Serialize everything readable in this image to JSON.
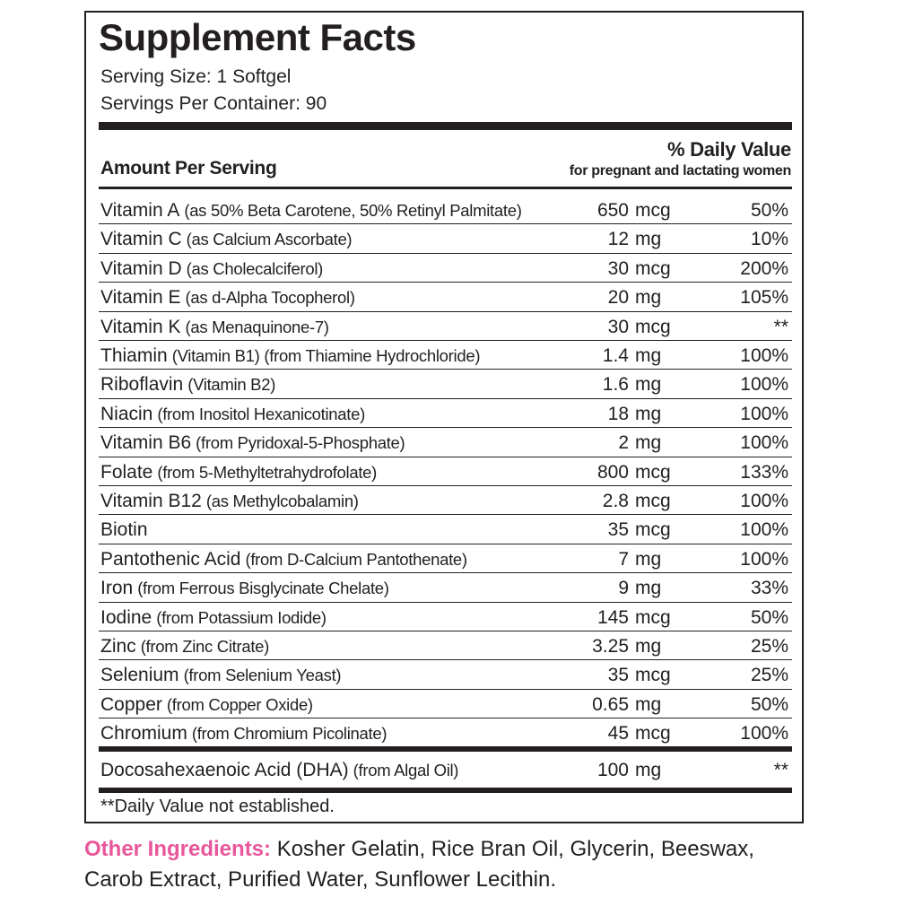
{
  "header": {
    "title": "Supplement Facts",
    "serving_size": "Serving Size: 1 Softgel",
    "servings_per_container": "Servings Per Container: 90"
  },
  "columns": {
    "amount": "Amount Per Serving",
    "daily_value": "% Daily Value",
    "daily_value_note": "for pregnant and lactating women"
  },
  "rows": [
    {
      "name": "Vitamin A",
      "detail": "(as 50% Beta Carotene, 50% Retinyl Palmitate)",
      "amount": "650",
      "unit": "mcg",
      "dv": "50%"
    },
    {
      "name": "Vitamin C",
      "detail": "(as Calcium Ascorbate)",
      "amount": "12",
      "unit": "mg",
      "dv": "10%"
    },
    {
      "name": "Vitamin D",
      "detail": "(as Cholecalciferol)",
      "amount": "30",
      "unit": "mcg",
      "dv": "200%"
    },
    {
      "name": "Vitamin E",
      "detail": "(as d-Alpha Tocopherol)",
      "amount": "20",
      "unit": "mg",
      "dv": "105%"
    },
    {
      "name": "Vitamin K",
      "detail": "(as Menaquinone-7)",
      "amount": "30",
      "unit": "mcg",
      "dv": "**"
    },
    {
      "name": "Thiamin",
      "detail": "(Vitamin B1) (from Thiamine Hydrochloride)",
      "amount": "1.4",
      "unit": "mg",
      "dv": "100%"
    },
    {
      "name": "Riboflavin",
      "detail": "(Vitamin B2)",
      "amount": "1.6",
      "unit": "mg",
      "dv": "100%"
    },
    {
      "name": "Niacin",
      "detail": "(from Inositol Hexanicotinate)",
      "amount": "18",
      "unit": "mg",
      "dv": "100%"
    },
    {
      "name": "Vitamin B6",
      "detail": "(from Pyridoxal-5-Phosphate)",
      "amount": "2",
      "unit": "mg",
      "dv": "100%"
    },
    {
      "name": "Folate",
      "detail": "(from 5-Methyltetrahydrofolate)",
      "amount": "800",
      "unit": "mcg",
      "dv": "133%"
    },
    {
      "name": "Vitamin B12",
      "detail": "(as Methylcobalamin)",
      "amount": "2.8",
      "unit": "mcg",
      "dv": "100%"
    },
    {
      "name": "Biotin",
      "amount": "35",
      "unit": "mcg",
      "dv": "100%"
    },
    {
      "name": "Pantothenic Acid",
      "detail": "(from D-Calcium Pantothenate)",
      "amount": "7",
      "unit": "mg",
      "dv": "100%"
    },
    {
      "name": "Iron",
      "detail": "(from Ferrous Bisglycinate Chelate)",
      "amount": "9",
      "unit": "mg",
      "dv": "33%"
    },
    {
      "name": "Iodine",
      "detail": "(from Potassium Iodide)",
      "amount": "145",
      "unit": "mcg",
      "dv": "50%"
    },
    {
      "name": "Zinc",
      "detail": "(from Zinc Citrate)",
      "amount": "3.25",
      "unit": "mg",
      "dv": "25%"
    },
    {
      "name": "Selenium",
      "detail": "(from Selenium Yeast)",
      "amount": "35",
      "unit": "mcg",
      "dv": "25%"
    },
    {
      "name": "Copper",
      "detail": "(from Copper Oxide)",
      "amount": "0.65",
      "unit": "mg",
      "dv": "50%"
    },
    {
      "name": "Chromium",
      "detail": "(from Chromium Picolinate)",
      "amount": "45",
      "unit": "mcg",
      "dv": "100%"
    }
  ],
  "dha_row": {
    "name": "Docosahexaenoic Acid (DHA)",
    "detail": "(from Algal Oil)",
    "amount": "100",
    "unit": "mg",
    "dv": "**"
  },
  "footnote": "**Daily Value not established.",
  "other_ingredients": {
    "label": "Other Ingredients:",
    "text": "Kosher Gelatin, Rice Bran Oil, Glycerin, Beeswax, Carob Extract, Purified Water, Sunflower Lecithin."
  }
}
